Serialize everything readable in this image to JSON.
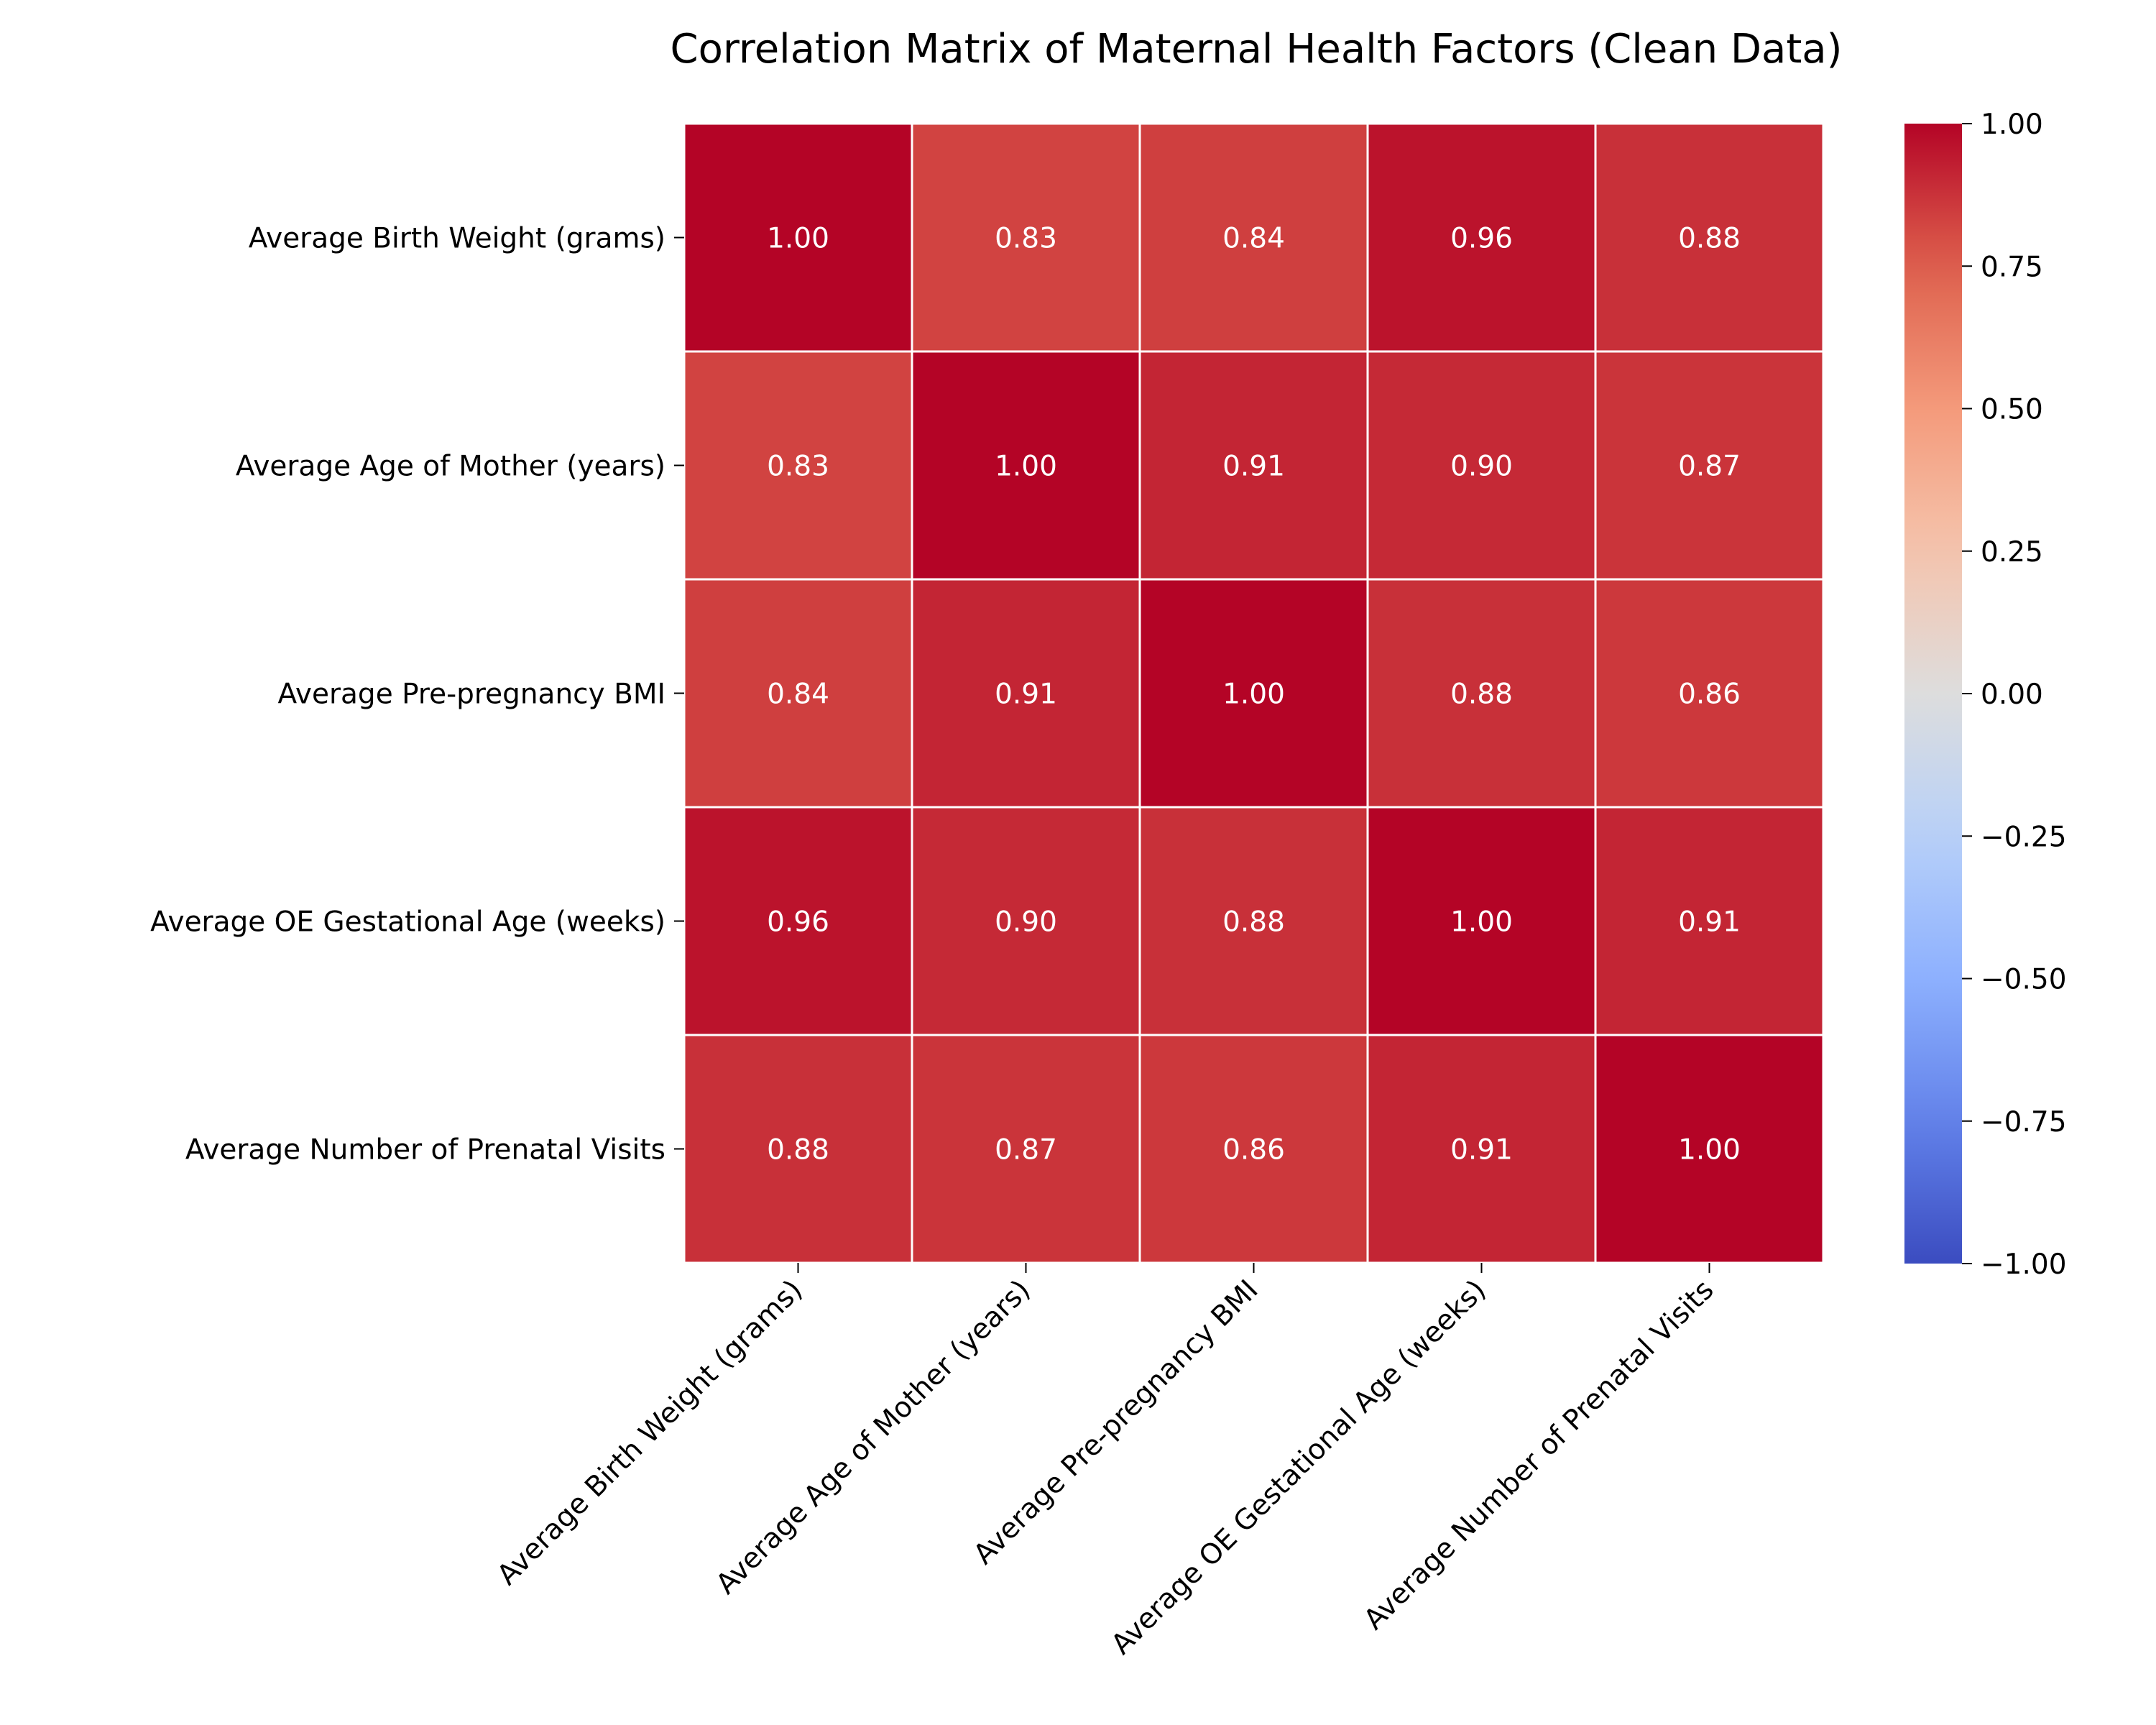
{
  "chart_data": {
    "type": "heatmap",
    "title": "Correlation Matrix of Maternal Health Factors (Clean Data)",
    "xlabel": "",
    "ylabel": "",
    "row_labels": [
      "Average Birth Weight (grams)",
      "Average Age of Mother (years)",
      "Average Pre-pregnancy BMI",
      "Average OE Gestational Age (weeks)",
      "Average Number of Prenatal Visits"
    ],
    "col_labels": [
      "Average Birth Weight (grams)",
      "Average Age of Mother (years)",
      "Average Pre-pregnancy BMI",
      "Average OE Gestational Age (weeks)",
      "Average Number of Prenatal Visits"
    ],
    "values": [
      [
        1.0,
        0.83,
        0.84,
        0.96,
        0.88
      ],
      [
        0.83,
        1.0,
        0.91,
        0.9,
        0.87
      ],
      [
        0.84,
        0.91,
        1.0,
        0.88,
        0.86
      ],
      [
        0.96,
        0.9,
        0.88,
        1.0,
        0.91
      ],
      [
        0.88,
        0.87,
        0.86,
        0.91,
        1.0
      ]
    ],
    "colormap": "coolwarm",
    "vmin": -1.0,
    "vmax": 1.0,
    "colorbar_ticks": [
      "1.00",
      "0.75",
      "0.50",
      "0.25",
      "0.00",
      "−0.25",
      "−0.50",
      "−0.75",
      "−1.00"
    ],
    "colorbar_tick_values": [
      1.0,
      0.75,
      0.5,
      0.25,
      0.0,
      -0.25,
      -0.5,
      -0.75,
      -1.0
    ],
    "annotation_format": "2 decimals",
    "annotation_color": "#ffffff",
    "grid_line_color": "#ffffff",
    "colorbar_position": "right"
  }
}
